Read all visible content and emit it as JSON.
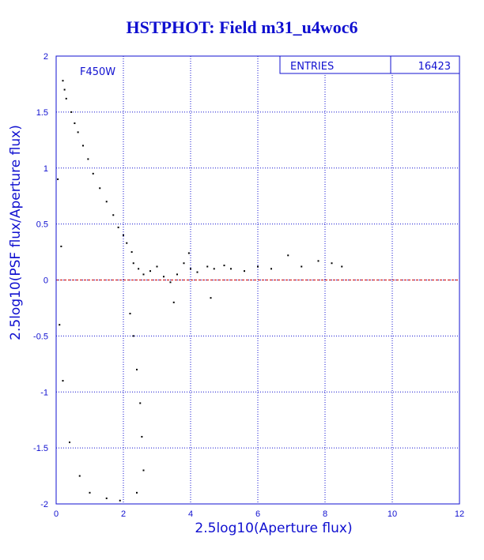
{
  "chart_data": {
    "type": "scatter",
    "title": "HSTPHOT: Field m31_u4woc6",
    "xlabel": "2.5log10(Aperture flux)",
    "ylabel": "2.5log10(PSF flux/Aperture flux)",
    "xlim": [
      0,
      12
    ],
    "ylim": [
      -2,
      2
    ],
    "x_ticks": [
      "0",
      "2",
      "4",
      "6",
      "8",
      "10",
      "12"
    ],
    "y_ticks": [
      "-2",
      "-1.5",
      "-1",
      "-0.5",
      "0",
      "0.5",
      "1",
      "1.5",
      "2"
    ],
    "grid": true,
    "reference_line_y": 0,
    "filter_label": "F450W",
    "stats": {
      "label": "ENTRIES",
      "value": "16423"
    },
    "colors": {
      "text": "#1010d0",
      "grid": "#1010d0",
      "points": "#000000",
      "reference_line": "#cc0000"
    },
    "series": [
      {
        "points": [
          [
            0.2,
            1.78
          ],
          [
            0.25,
            1.7
          ],
          [
            0.3,
            1.62
          ],
          [
            0.45,
            1.5
          ],
          [
            0.55,
            1.4
          ],
          [
            0.65,
            1.32
          ],
          [
            0.8,
            1.2
          ],
          [
            0.95,
            1.08
          ],
          [
            1.1,
            0.95
          ],
          [
            1.3,
            0.82
          ],
          [
            1.5,
            0.7
          ],
          [
            1.7,
            0.58
          ],
          [
            1.85,
            0.47
          ],
          [
            2.0,
            0.4
          ],
          [
            2.1,
            0.33
          ],
          [
            2.25,
            0.25
          ],
          [
            2.3,
            0.15
          ],
          [
            2.45,
            0.1
          ],
          [
            2.6,
            0.05
          ],
          [
            2.8,
            0.08
          ],
          [
            3.0,
            0.12
          ],
          [
            3.2,
            0.03
          ],
          [
            3.4,
            -0.02
          ],
          [
            3.6,
            0.05
          ],
          [
            3.8,
            0.15
          ],
          [
            3.95,
            0.24
          ],
          [
            4.0,
            0.1
          ],
          [
            4.2,
            0.07
          ],
          [
            4.5,
            0.12
          ],
          [
            4.7,
            0.1
          ],
          [
            5.0,
            0.13
          ],
          [
            5.2,
            0.1
          ],
          [
            5.6,
            0.08
          ],
          [
            6.0,
            0.12
          ],
          [
            6.4,
            0.1
          ],
          [
            6.9,
            0.22
          ],
          [
            7.3,
            0.12
          ],
          [
            7.8,
            0.17
          ],
          [
            8.2,
            0.15
          ],
          [
            8.5,
            0.12
          ],
          [
            4.6,
            -0.16
          ],
          [
            3.5,
            -0.2
          ],
          [
            2.2,
            -0.3
          ],
          [
            2.3,
            -0.5
          ],
          [
            2.4,
            -0.8
          ],
          [
            2.5,
            -1.1
          ],
          [
            2.55,
            -1.4
          ],
          [
            2.6,
            -1.7
          ],
          [
            2.4,
            -1.9
          ],
          [
            1.9,
            -1.97
          ],
          [
            1.5,
            -1.95
          ],
          [
            1.0,
            -1.9
          ],
          [
            0.7,
            -1.75
          ],
          [
            0.4,
            -1.45
          ],
          [
            0.2,
            -0.9
          ],
          [
            0.1,
            -0.4
          ],
          [
            0.15,
            0.3
          ],
          [
            0.05,
            0.9
          ]
        ]
      }
    ]
  }
}
